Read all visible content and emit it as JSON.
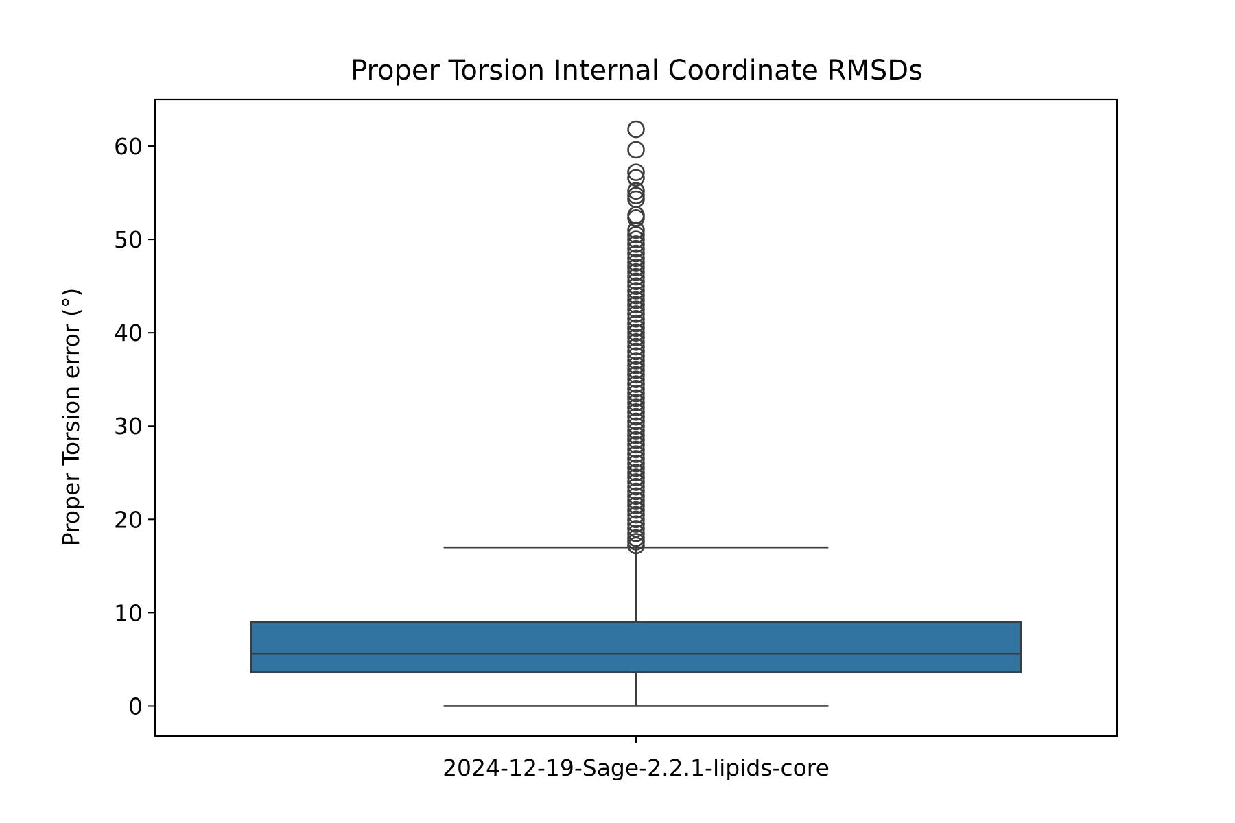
{
  "chart_data": {
    "type": "box",
    "title": "Proper Torsion Internal Coordinate RMSDs",
    "xlabel": "",
    "ylabel": "Proper Torsion error (°)",
    "categories": [
      "2024-12-19-Sage-2.2.1-lipids-core"
    ],
    "ylim": [
      -3.2,
      65
    ],
    "yticks": [
      0,
      10,
      20,
      30,
      40,
      50,
      60
    ],
    "grid": false,
    "box_color": "#3274a1",
    "line_color": "#3d3d3d",
    "boxes": [
      {
        "category": "2024-12-19-Sage-2.2.1-lipids-core",
        "whisker_low": 0.0,
        "q1": 3.6,
        "median": 5.6,
        "q3": 9.0,
        "whisker_high": 17.0,
        "outliers": [
          17.2,
          17.6,
          18.0,
          18.5,
          19.0,
          19.5,
          20.0,
          20.5,
          21.0,
          21.5,
          22.0,
          22.5,
          23.0,
          23.5,
          24.0,
          24.5,
          25.0,
          25.5,
          26.0,
          26.5,
          27.0,
          27.5,
          28.0,
          28.5,
          29.0,
          29.5,
          30.0,
          30.5,
          31.0,
          31.5,
          32.0,
          32.5,
          33.0,
          33.5,
          34.0,
          34.5,
          35.0,
          35.5,
          36.0,
          36.5,
          37.0,
          37.5,
          38.0,
          38.5,
          39.0,
          39.5,
          40.0,
          40.5,
          41.0,
          41.5,
          42.0,
          42.5,
          43.0,
          43.5,
          44.0,
          44.5,
          45.0,
          45.5,
          46.0,
          46.5,
          47.0,
          47.5,
          48.0,
          48.5,
          49.0,
          49.5,
          50.0,
          50.5,
          51.0,
          52.3,
          52.6,
          54.3,
          54.7,
          55.2,
          56.6,
          57.2,
          59.6,
          61.8
        ]
      }
    ]
  }
}
